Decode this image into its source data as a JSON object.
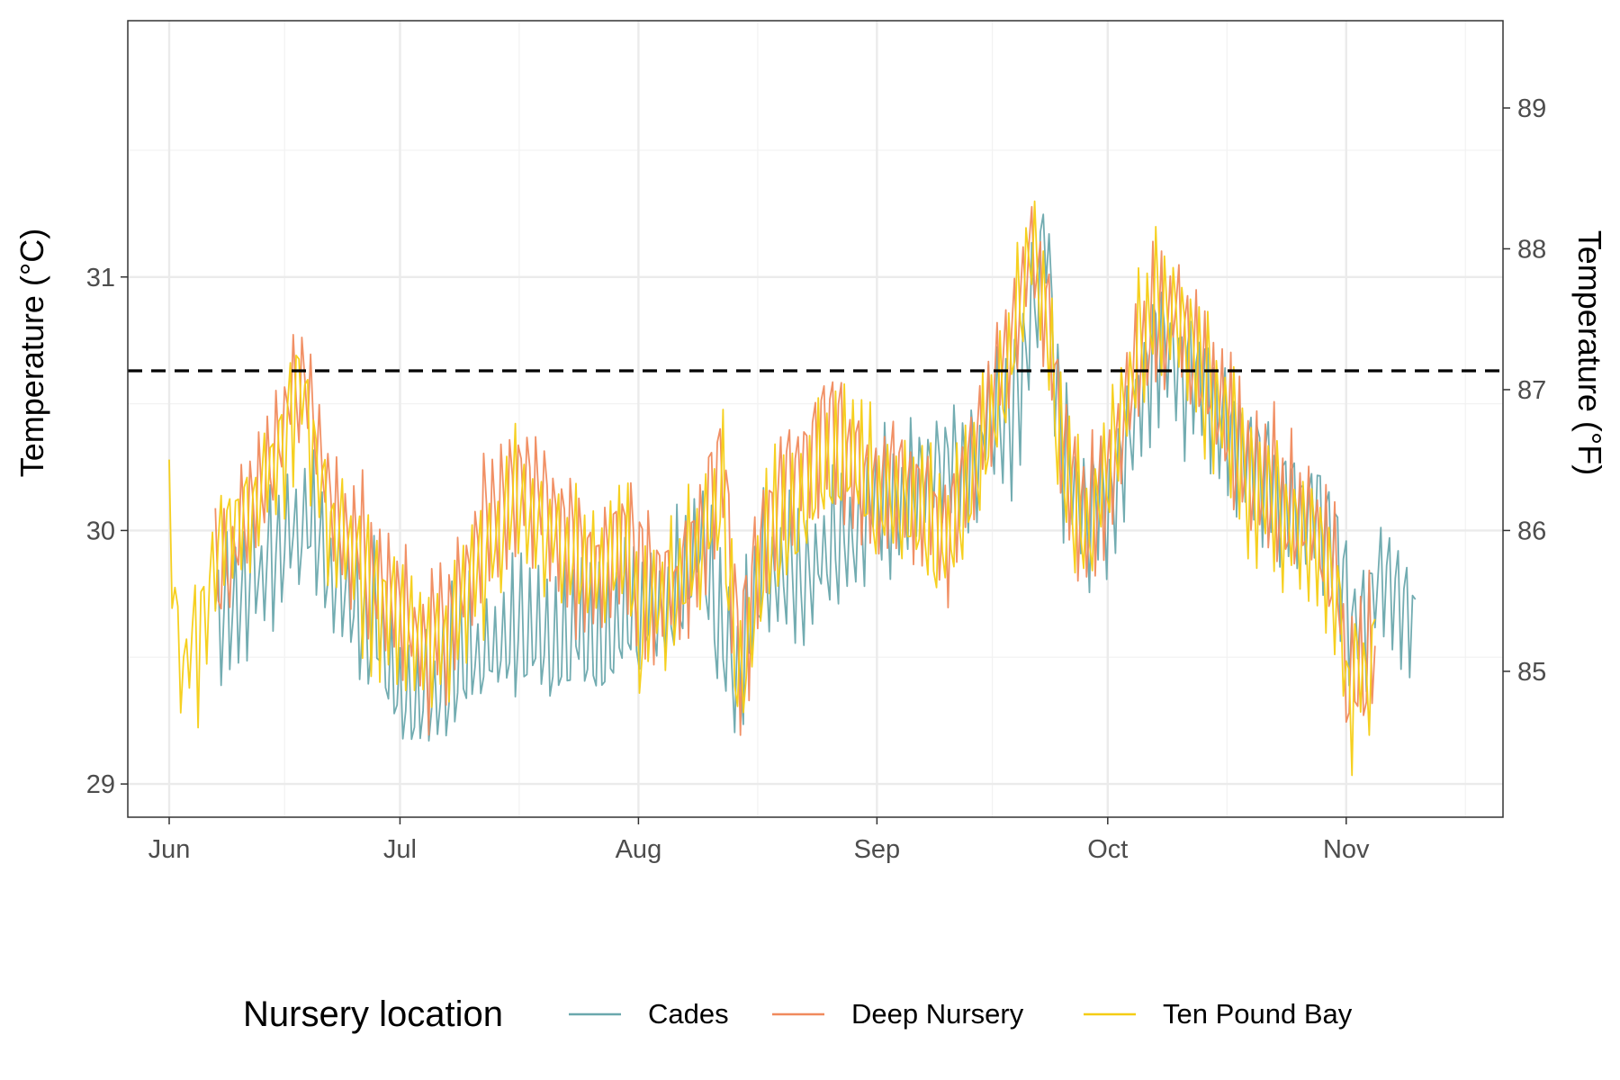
{
  "chart_data": {
    "type": "line",
    "ylabel": "Temperature (°C)",
    "ylabel_right": "Temperature (°F)",
    "xlim": [
      "2023-06-01",
      "2023-11-16"
    ],
    "ylim": [
      28.94,
      31.94
    ],
    "y_ticks": [
      29,
      30,
      31
    ],
    "y_ticks_right": [
      85,
      86,
      87,
      88,
      89
    ],
    "x_ticks": [
      {
        "date": "2023-06-01",
        "label": "Jun"
      },
      {
        "date": "2023-07-01",
        "label": "Jul"
      },
      {
        "date": "2023-08-01",
        "label": "Aug"
      },
      {
        "date": "2023-09-01",
        "label": "Sep"
      },
      {
        "date": "2023-10-01",
        "label": "Oct"
      },
      {
        "date": "2023-11-01",
        "label": "Nov"
      }
    ],
    "threshold": {
      "value": 30.63,
      "style": "dashed",
      "color": "#000000"
    },
    "grid": true,
    "legend": {
      "title": "Nursery location",
      "position": "bottom"
    },
    "series": [
      {
        "name": "Cades",
        "color": "#6aa8ad",
        "x": [
          "2023-06-07",
          "2023-06-10",
          "2023-06-13",
          "2023-06-16",
          "2023-06-19",
          "2023-06-22",
          "2023-06-25",
          "2023-06-28",
          "2023-07-01",
          "2023-07-04",
          "2023-07-07",
          "2023-07-10",
          "2023-07-13",
          "2023-07-16",
          "2023-07-19",
          "2023-07-22",
          "2023-07-25",
          "2023-07-28",
          "2023-07-31",
          "2023-08-03",
          "2023-08-06",
          "2023-08-09",
          "2023-08-12",
          "2023-08-14",
          "2023-08-17",
          "2023-08-20",
          "2023-08-23",
          "2023-08-26",
          "2023-08-29",
          "2023-09-01",
          "2023-09-04",
          "2023-09-07",
          "2023-09-10",
          "2023-09-13",
          "2023-09-16",
          "2023-09-19",
          "2023-09-21",
          "2023-09-23",
          "2023-09-25",
          "2023-09-28",
          "2023-10-01",
          "2023-10-04",
          "2023-10-07",
          "2023-10-10",
          "2023-10-13",
          "2023-10-16",
          "2023-10-19",
          "2023-10-22",
          "2023-10-25",
          "2023-10-28",
          "2023-10-31",
          "2023-11-02",
          "2023-11-04",
          "2023-11-06",
          "2023-11-08",
          "2023-11-10"
        ],
        "y": [
          29.75,
          29.7,
          29.85,
          29.95,
          30.05,
          29.85,
          29.7,
          29.6,
          29.35,
          29.3,
          29.4,
          29.5,
          29.55,
          29.6,
          29.6,
          29.55,
          29.6,
          29.6,
          29.7,
          29.65,
          29.75,
          29.95,
          29.55,
          29.4,
          29.85,
          29.8,
          29.85,
          29.9,
          30.0,
          30.1,
          30.15,
          30.2,
          30.25,
          30.3,
          30.4,
          30.5,
          30.8,
          31.2,
          30.35,
          30.05,
          30.1,
          30.35,
          30.7,
          30.7,
          30.6,
          30.45,
          30.3,
          30.2,
          30.1,
          30.1,
          29.9,
          29.55,
          29.7,
          29.85,
          29.75,
          29.65
        ]
      },
      {
        "name": "Deep Nursery",
        "color": "#f08a5d",
        "x": [
          "2023-06-07",
          "2023-06-10",
          "2023-06-13",
          "2023-06-16",
          "2023-06-18",
          "2023-06-19",
          "2023-06-20",
          "2023-06-22",
          "2023-06-25",
          "2023-06-28",
          "2023-07-01",
          "2023-07-04",
          "2023-07-07",
          "2023-07-10",
          "2023-07-13",
          "2023-07-16",
          "2023-07-19",
          "2023-07-22",
          "2023-07-25",
          "2023-07-28",
          "2023-07-31",
          "2023-08-03",
          "2023-08-06",
          "2023-08-09",
          "2023-08-12",
          "2023-08-14",
          "2023-08-17",
          "2023-08-20",
          "2023-08-23",
          "2023-08-26",
          "2023-08-29",
          "2023-09-01",
          "2023-09-04",
          "2023-09-07",
          "2023-09-10",
          "2023-09-13",
          "2023-09-16",
          "2023-09-19",
          "2023-09-21",
          "2023-09-23",
          "2023-09-25",
          "2023-09-28",
          "2023-10-01",
          "2023-10-04",
          "2023-10-07",
          "2023-10-10",
          "2023-10-13",
          "2023-10-16",
          "2023-10-19",
          "2023-10-22",
          "2023-10-25",
          "2023-10-28",
          "2023-10-31",
          "2023-11-01",
          "2023-11-03",
          "2023-11-05"
        ],
        "y": [
          29.8,
          29.95,
          30.2,
          30.45,
          30.65,
          30.55,
          30.4,
          30.1,
          29.95,
          29.8,
          29.7,
          29.55,
          29.6,
          29.85,
          30.05,
          30.2,
          30.15,
          30.0,
          29.85,
          29.9,
          29.95,
          29.8,
          29.75,
          29.95,
          30.3,
          29.5,
          29.95,
          30.2,
          30.25,
          30.4,
          30.3,
          30.15,
          30.2,
          30.1,
          30.0,
          30.25,
          30.5,
          30.8,
          31.1,
          30.95,
          30.4,
          30.0,
          30.2,
          30.55,
          30.85,
          30.9,
          30.65,
          30.45,
          30.25,
          30.15,
          30.05,
          30.05,
          29.8,
          29.35,
          29.45,
          29.6
        ]
      },
      {
        "name": "Ten Pound Bay",
        "color": "#f5cd14",
        "x": [
          "2023-06-01",
          "2023-06-02",
          "2023-06-03",
          "2023-06-05",
          "2023-06-07",
          "2023-06-10",
          "2023-06-13",
          "2023-06-16",
          "2023-06-18",
          "2023-06-19",
          "2023-06-20",
          "2023-06-22",
          "2023-06-25",
          "2023-06-28",
          "2023-07-01",
          "2023-07-04",
          "2023-07-07",
          "2023-07-10",
          "2023-07-13",
          "2023-07-16",
          "2023-07-19",
          "2023-07-22",
          "2023-07-25",
          "2023-07-28",
          "2023-07-31",
          "2023-08-01",
          "2023-08-03",
          "2023-08-06",
          "2023-08-09",
          "2023-08-12",
          "2023-08-14",
          "2023-08-17",
          "2023-08-20",
          "2023-08-23",
          "2023-08-26",
          "2023-08-29",
          "2023-09-01",
          "2023-09-04",
          "2023-09-07",
          "2023-09-10",
          "2023-09-13",
          "2023-09-16",
          "2023-09-19",
          "2023-09-21",
          "2023-09-23",
          "2023-09-25",
          "2023-09-28",
          "2023-10-01",
          "2023-10-04",
          "2023-10-07",
          "2023-10-10",
          "2023-10-13",
          "2023-10-16",
          "2023-10-19",
          "2023-10-22",
          "2023-10-25",
          "2023-10-28",
          "2023-10-31",
          "2023-11-01",
          "2023-11-03",
          "2023-11-05"
        ],
        "y": [
          30.08,
          29.6,
          29.45,
          29.65,
          29.85,
          30.0,
          30.15,
          30.4,
          30.6,
          30.5,
          30.3,
          30.0,
          29.9,
          29.75,
          29.65,
          29.55,
          29.55,
          29.8,
          29.95,
          30.1,
          30.05,
          29.95,
          29.85,
          29.85,
          29.9,
          29.5,
          29.75,
          29.75,
          29.95,
          30.15,
          29.3,
          29.9,
          30.05,
          30.15,
          30.3,
          30.25,
          30.1,
          30.15,
          30.05,
          29.95,
          30.15,
          30.45,
          30.75,
          31.15,
          30.85,
          30.3,
          29.95,
          30.2,
          30.6,
          30.85,
          30.85,
          30.65,
          30.45,
          30.2,
          30.1,
          30.0,
          29.95,
          29.75,
          29.4,
          29.4,
          29.55
        ]
      }
    ]
  }
}
